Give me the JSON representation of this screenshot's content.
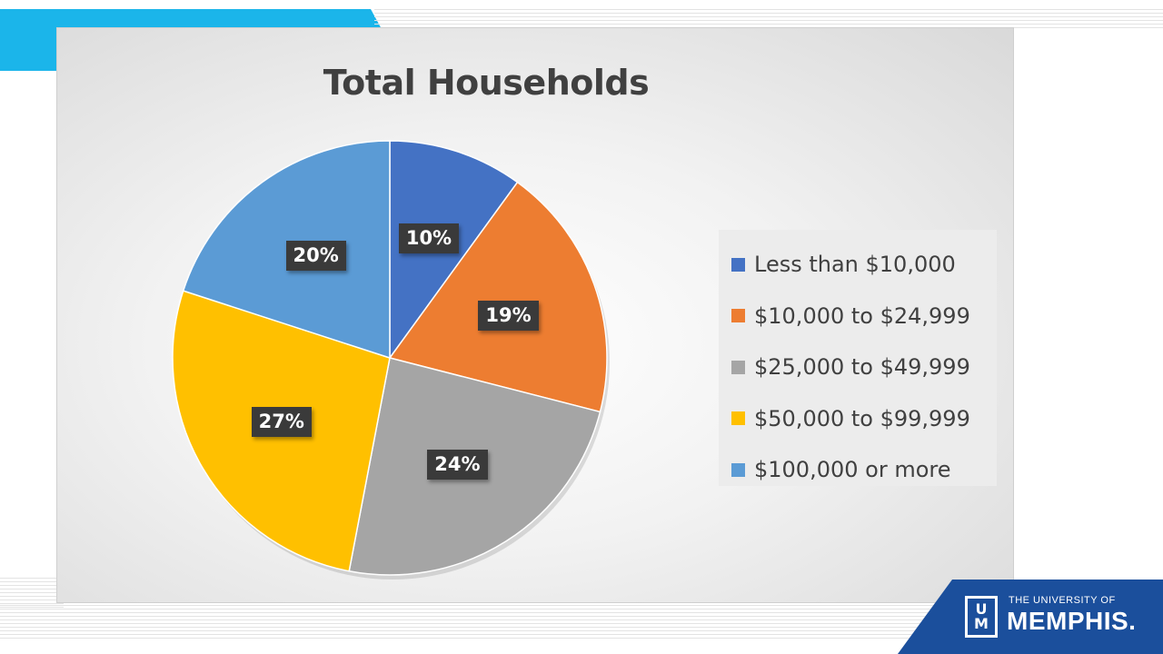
{
  "chart_data": {
    "type": "pie",
    "title": "Total Households",
    "categories": [
      "Less than $10,000",
      "$10,000 to $24,999",
      "$25,000 to $49,999",
      "$50,000 to $99,999",
      "$100,000 or more"
    ],
    "values": [
      10,
      19,
      24,
      27,
      20
    ],
    "data_labels": [
      "10%",
      "19%",
      "24%",
      "27%",
      "20%"
    ],
    "colors": [
      "#4472c4",
      "#ed7d31",
      "#a5a5a5",
      "#ffc000",
      "#5b9bd5"
    ],
    "legend_position": "right"
  },
  "logo": {
    "small_text": "THE UNIVERSITY OF",
    "big_text": "MEMPHIS.",
    "mark_text_top": "U",
    "mark_text_bottom": "M"
  },
  "colors": {
    "accent_blue": "#1bb5ea",
    "brand_navy": "#1b4f9c"
  }
}
